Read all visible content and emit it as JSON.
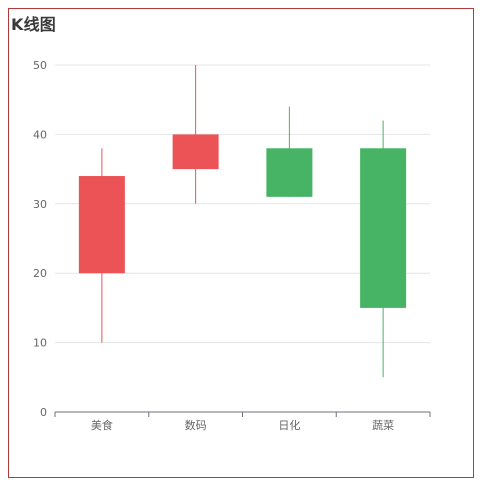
{
  "chart_data": {
    "type": "candlestick",
    "title": "K线图",
    "categories": [
      "美食",
      "数码",
      "日化",
      "蔬菜"
    ],
    "series": [
      {
        "open": [
          20,
          35,
          38,
          38
        ],
        "close": [
          34,
          40,
          31,
          15
        ],
        "low": [
          10,
          30,
          31,
          5
        ],
        "high": [
          38,
          50,
          44,
          42
        ]
      }
    ],
    "ylim": [
      0,
      50
    ],
    "yticks": [
      0,
      10,
      20,
      30,
      40,
      50
    ],
    "grid": true,
    "colors": {
      "up": "#ec5357",
      "down": "#46b464",
      "grid": "#e6e6e6",
      "axis": "#6e7079",
      "frame": "#b13a3a"
    }
  }
}
